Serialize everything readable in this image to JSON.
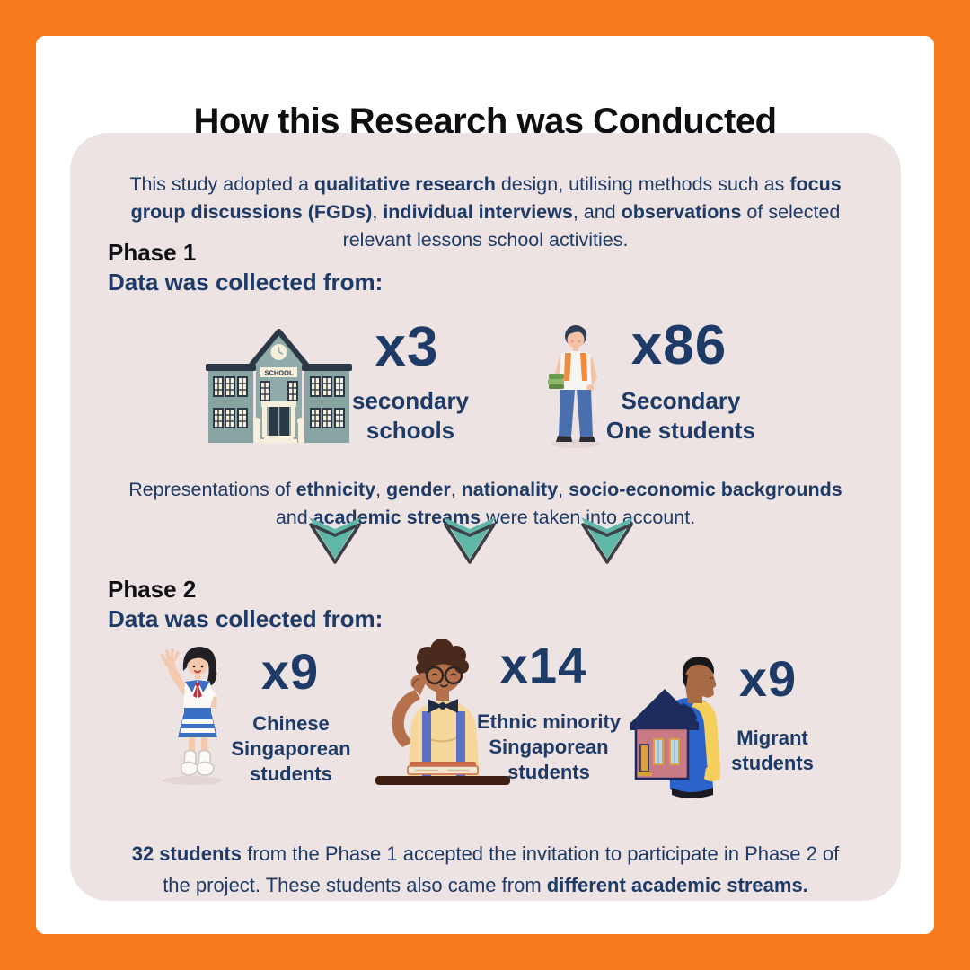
{
  "title": "How this Research was Conducted",
  "colors": {
    "accent_orange": "#F87A1E",
    "text_navy": "#1E3A66",
    "panel_pink": "#EDE3E3",
    "arrow_teal": "#5FB7A7"
  },
  "intro_segments": [
    {
      "text": "This study adopted a ",
      "bold": false
    },
    {
      "text": "qualitative research",
      "bold": true
    },
    {
      "text": " design, utilising methods such as ",
      "bold": false
    },
    {
      "text": "focus group discussions (FGDs)",
      "bold": true
    },
    {
      "text": ", ",
      "bold": false
    },
    {
      "text": "individual interviews",
      "bold": true
    },
    {
      "text": ", and ",
      "bold": false
    },
    {
      "text": "observations",
      "bold": true
    },
    {
      "text": " of selected relevant lessons school activities.",
      "bold": false
    }
  ],
  "phase1": {
    "heading": "Phase 1",
    "subheading": "Data was collected from:",
    "stats": [
      {
        "icon": "school-building-icon",
        "count": "x3",
        "label": "secondary\nschools"
      },
      {
        "icon": "student-with-backpack-icon",
        "count": "x86",
        "label": "Secondary\nOne students"
      }
    ],
    "note_segments": [
      {
        "text": "Representations of ",
        "bold": false
      },
      {
        "text": "ethnicity",
        "bold": true
      },
      {
        "text": ", ",
        "bold": false
      },
      {
        "text": "gender",
        "bold": true
      },
      {
        "text": ", ",
        "bold": false
      },
      {
        "text": "nationality",
        "bold": true
      },
      {
        "text": ", ",
        "bold": false
      },
      {
        "text": "socio-economic backgrounds",
        "bold": true
      },
      {
        "text": " and ",
        "bold": false
      },
      {
        "text": "academic streams",
        "bold": true
      },
      {
        "text": " were taken into account.",
        "bold": false
      }
    ]
  },
  "phase2": {
    "heading": "Phase 2",
    "subheading": "Data was collected from:",
    "stats": [
      {
        "icon": "waving-schoolgirl-icon",
        "count": "x9",
        "label": "Chinese\nSingaporean\nstudents"
      },
      {
        "icon": "boy-at-desk-icon",
        "count": "x14",
        "label": "Ethnic minority\nSingaporean\nstudents"
      },
      {
        "icon": "man-carrying-house-icon",
        "count": "x9",
        "label": "Migrant\nstudents"
      }
    ]
  },
  "footer_segments": [
    {
      "text": "32 students",
      "bold": true
    },
    {
      "text": " from the Phase 1 accepted the invitation to participate in Phase 2 of the project. These students also came from ",
      "bold": false
    },
    {
      "text": "different academic streams.",
      "bold": true
    }
  ]
}
